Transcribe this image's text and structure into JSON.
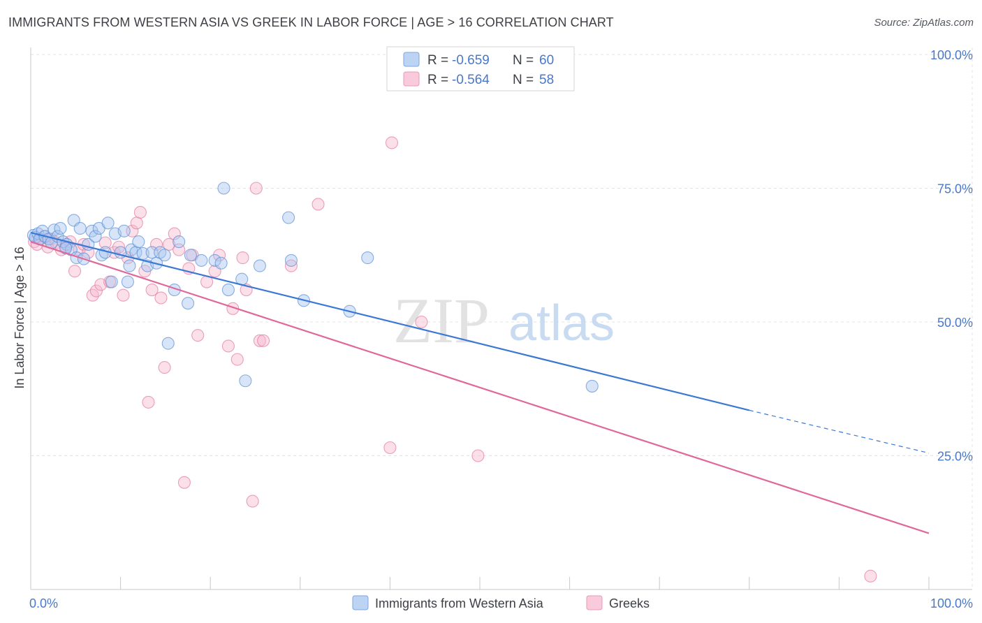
{
  "title": "IMMIGRANTS FROM WESTERN ASIA VS GREEK IN LABOR FORCE | AGE > 16 CORRELATION CHART",
  "source": "Source: ZipAtlas.com",
  "watermark": {
    "zip": "ZIP",
    "atlas": "atlas"
  },
  "chart_data": {
    "type": "scatter",
    "xlabel": "",
    "ylabel": "In Labor Force | Age > 16",
    "xlim": [
      0,
      100
    ],
    "ylim": [
      0,
      100
    ],
    "x_ticks": [
      "0.0%",
      "100.0%"
    ],
    "y_ticks": [
      {
        "value": 100,
        "label": "100.0%"
      },
      {
        "value": 75,
        "label": "75.0%"
      },
      {
        "value": 50,
        "label": "50.0%"
      },
      {
        "value": 25,
        "label": "25.0%"
      }
    ],
    "grid": true,
    "legend_position": "top-center",
    "legend_stats": [
      {
        "r_label": "R = ",
        "r_value": "-0.659",
        "n_label": "N = ",
        "n_value": "60"
      },
      {
        "r_label": "R = ",
        "r_value": "-0.564",
        "n_label": "N = ",
        "n_value": "58"
      }
    ],
    "series": [
      {
        "name": "Immigrants from Western Asia",
        "color": "#5b8fd6",
        "fill": "#a9c6ef",
        "trend": {
          "x0": 0,
          "y0": 66.7,
          "x1": 80,
          "y1": 33.5,
          "dash_x1": 100,
          "dash_y1": 25.5
        },
        "points": [
          [
            0.3,
            66.2
          ],
          [
            0.5,
            65.8
          ],
          [
            0.8,
            66.5
          ],
          [
            1.0,
            65.5
          ],
          [
            1.3,
            67.0
          ],
          [
            1.6,
            66.0
          ],
          [
            2.0,
            65.5
          ],
          [
            2.3,
            64.8
          ],
          [
            2.6,
            67.2
          ],
          [
            3.0,
            66.0
          ],
          [
            3.3,
            67.5
          ],
          [
            3.6,
            65.0
          ],
          [
            4.0,
            64.5
          ],
          [
            4.5,
            63.5
          ],
          [
            4.8,
            69.0
          ],
          [
            5.1,
            62.0
          ],
          [
            5.5,
            67.5
          ],
          [
            5.9,
            61.8
          ],
          [
            6.4,
            64.5
          ],
          [
            6.8,
            67.0
          ],
          [
            7.2,
            66.0
          ],
          [
            7.6,
            67.5
          ],
          [
            7.9,
            62.5
          ],
          [
            8.3,
            63.0
          ],
          [
            8.6,
            68.5
          ],
          [
            9.0,
            57.5
          ],
          [
            9.4,
            66.5
          ],
          [
            10.0,
            63.0
          ],
          [
            10.4,
            67.0
          ],
          [
            10.8,
            57.5
          ],
          [
            11.2,
            63.5
          ],
          [
            11.7,
            63.0
          ],
          [
            12.0,
            65.0
          ],
          [
            12.5,
            62.8
          ],
          [
            13.0,
            60.5
          ],
          [
            13.5,
            63.0
          ],
          [
            14.0,
            61.0
          ],
          [
            14.4,
            63.0
          ],
          [
            14.9,
            62.5
          ],
          [
            15.3,
            46.0
          ],
          [
            16.0,
            56.0
          ],
          [
            16.5,
            65.0
          ],
          [
            17.8,
            62.5
          ],
          [
            17.5,
            53.5
          ],
          [
            19.0,
            61.5
          ],
          [
            20.5,
            61.5
          ],
          [
            21.5,
            75.0
          ],
          [
            21.2,
            61.0
          ],
          [
            22.0,
            56.0
          ],
          [
            23.5,
            58.0
          ],
          [
            23.9,
            39.0
          ],
          [
            25.5,
            60.5
          ],
          [
            28.7,
            69.5
          ],
          [
            30.4,
            54.0
          ],
          [
            35.5,
            52.0
          ],
          [
            37.5,
            62.0
          ],
          [
            62.5,
            38.0
          ],
          [
            29.0,
            61.5
          ],
          [
            11.0,
            60.5
          ],
          [
            3.9,
            63.8
          ]
        ]
      },
      {
        "name": "Greeks",
        "color": "#e27aa1",
        "fill": "#f6b9cf",
        "trend": {
          "x0": 0,
          "y0": 65.0,
          "x1": 100,
          "y1": 10.5
        },
        "points": [
          [
            0.4,
            65.0
          ],
          [
            0.7,
            64.5
          ],
          [
            1.1,
            65.5
          ],
          [
            1.5,
            66.0
          ],
          [
            1.9,
            64.0
          ],
          [
            2.3,
            65.5
          ],
          [
            2.8,
            64.8
          ],
          [
            3.4,
            63.5
          ],
          [
            3.9,
            64.0
          ],
          [
            4.4,
            65.0
          ],
          [
            4.9,
            59.5
          ],
          [
            5.4,
            63.5
          ],
          [
            5.9,
            64.5
          ],
          [
            6.4,
            63.0
          ],
          [
            6.9,
            55.0
          ],
          [
            7.3,
            55.8
          ],
          [
            7.8,
            57.0
          ],
          [
            8.3,
            64.8
          ],
          [
            8.8,
            57.5
          ],
          [
            9.3,
            63.0
          ],
          [
            9.8,
            64.0
          ],
          [
            10.3,
            55.0
          ],
          [
            10.8,
            62.0
          ],
          [
            11.3,
            67.0
          ],
          [
            11.8,
            68.5
          ],
          [
            12.2,
            70.5
          ],
          [
            12.7,
            59.5
          ],
          [
            13.1,
            35.0
          ],
          [
            13.5,
            56.0
          ],
          [
            14.0,
            64.5
          ],
          [
            14.5,
            54.5
          ],
          [
            14.9,
            41.5
          ],
          [
            15.4,
            64.5
          ],
          [
            16.0,
            66.5
          ],
          [
            16.5,
            63.5
          ],
          [
            17.1,
            20.0
          ],
          [
            17.6,
            60.0
          ],
          [
            18.0,
            62.5
          ],
          [
            18.6,
            47.5
          ],
          [
            19.6,
            57.5
          ],
          [
            20.5,
            59.5
          ],
          [
            21.0,
            62.5
          ],
          [
            22.0,
            45.5
          ],
          [
            22.5,
            52.5
          ],
          [
            23.0,
            43.0
          ],
          [
            23.6,
            62.0
          ],
          [
            24.0,
            56.0
          ],
          [
            24.7,
            16.5
          ],
          [
            25.1,
            75.0
          ],
          [
            25.5,
            46.5
          ],
          [
            25.9,
            46.5
          ],
          [
            29.0,
            60.5
          ],
          [
            32.0,
            72.0
          ],
          [
            40.2,
            83.5
          ],
          [
            40.0,
            26.5
          ],
          [
            43.5,
            50.0
          ],
          [
            49.8,
            25.0
          ],
          [
            93.5,
            2.5
          ]
        ]
      }
    ]
  }
}
